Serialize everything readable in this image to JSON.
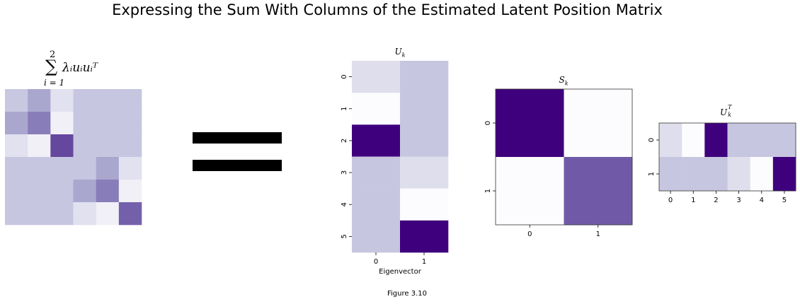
{
  "title": "Expressing the Sum With Columns of the Estimated Latent Position Matrix",
  "caption": "Figure 3.10",
  "colors": {
    "cmap": "Purples",
    "low": "#fcfbfd",
    "high": "#3f007d"
  },
  "chart_data": [
    {
      "type": "heatmap",
      "name": "sum",
      "title": {
        "sum_symbol": "∑",
        "upper": "2",
        "lower": "i = 1",
        "body": "λᵢuᵢuᵢᵀ"
      },
      "rows": 6,
      "cols": 6,
      "values": [
        [
          0.32,
          0.45,
          0.2,
          0.33,
          0.33,
          0.33
        ],
        [
          0.45,
          0.6,
          0.08,
          0.33,
          0.33,
          0.33
        ],
        [
          0.2,
          0.08,
          0.78,
          0.33,
          0.33,
          0.33
        ],
        [
          0.33,
          0.33,
          0.33,
          0.33,
          0.45,
          0.2
        ],
        [
          0.33,
          0.33,
          0.33,
          0.45,
          0.6,
          0.08
        ],
        [
          0.33,
          0.33,
          0.33,
          0.2,
          0.08,
          0.7
        ]
      ],
      "xticks": [],
      "yticks": []
    },
    {
      "type": "heatmap",
      "name": "Uk",
      "title": {
        "base": "U",
        "sub": "k"
      },
      "rows": 6,
      "cols": 2,
      "values": [
        [
          0.22,
          0.33
        ],
        [
          0.0,
          0.33
        ],
        [
          1.0,
          0.33
        ],
        [
          0.33,
          0.22
        ],
        [
          0.33,
          0.0
        ],
        [
          0.33,
          1.0
        ]
      ],
      "xticks": [
        "0",
        "1"
      ],
      "yticks": [
        "0",
        "1",
        "2",
        "3",
        "4",
        "5"
      ],
      "xlabel": "Eigenvector"
    },
    {
      "type": "heatmap",
      "name": "Sk",
      "title": {
        "base": "S",
        "sub": "k"
      },
      "rows": 2,
      "cols": 2,
      "values": [
        [
          1.0,
          0.0
        ],
        [
          0.0,
          0.72
        ]
      ],
      "xticks": [
        "0",
        "1"
      ],
      "yticks": [
        "0",
        "1"
      ]
    },
    {
      "type": "heatmap",
      "name": "UkT",
      "title": {
        "base": "U",
        "sub": "k",
        "sup": "T"
      },
      "rows": 2,
      "cols": 6,
      "values": [
        [
          0.22,
          0.0,
          1.0,
          0.33,
          0.33,
          0.33
        ],
        [
          0.33,
          0.33,
          0.33,
          0.22,
          0.0,
          1.0
        ]
      ],
      "xticks": [
        "0",
        "1",
        "2",
        "3",
        "4",
        "5"
      ],
      "yticks": [
        "0",
        "1"
      ]
    }
  ]
}
